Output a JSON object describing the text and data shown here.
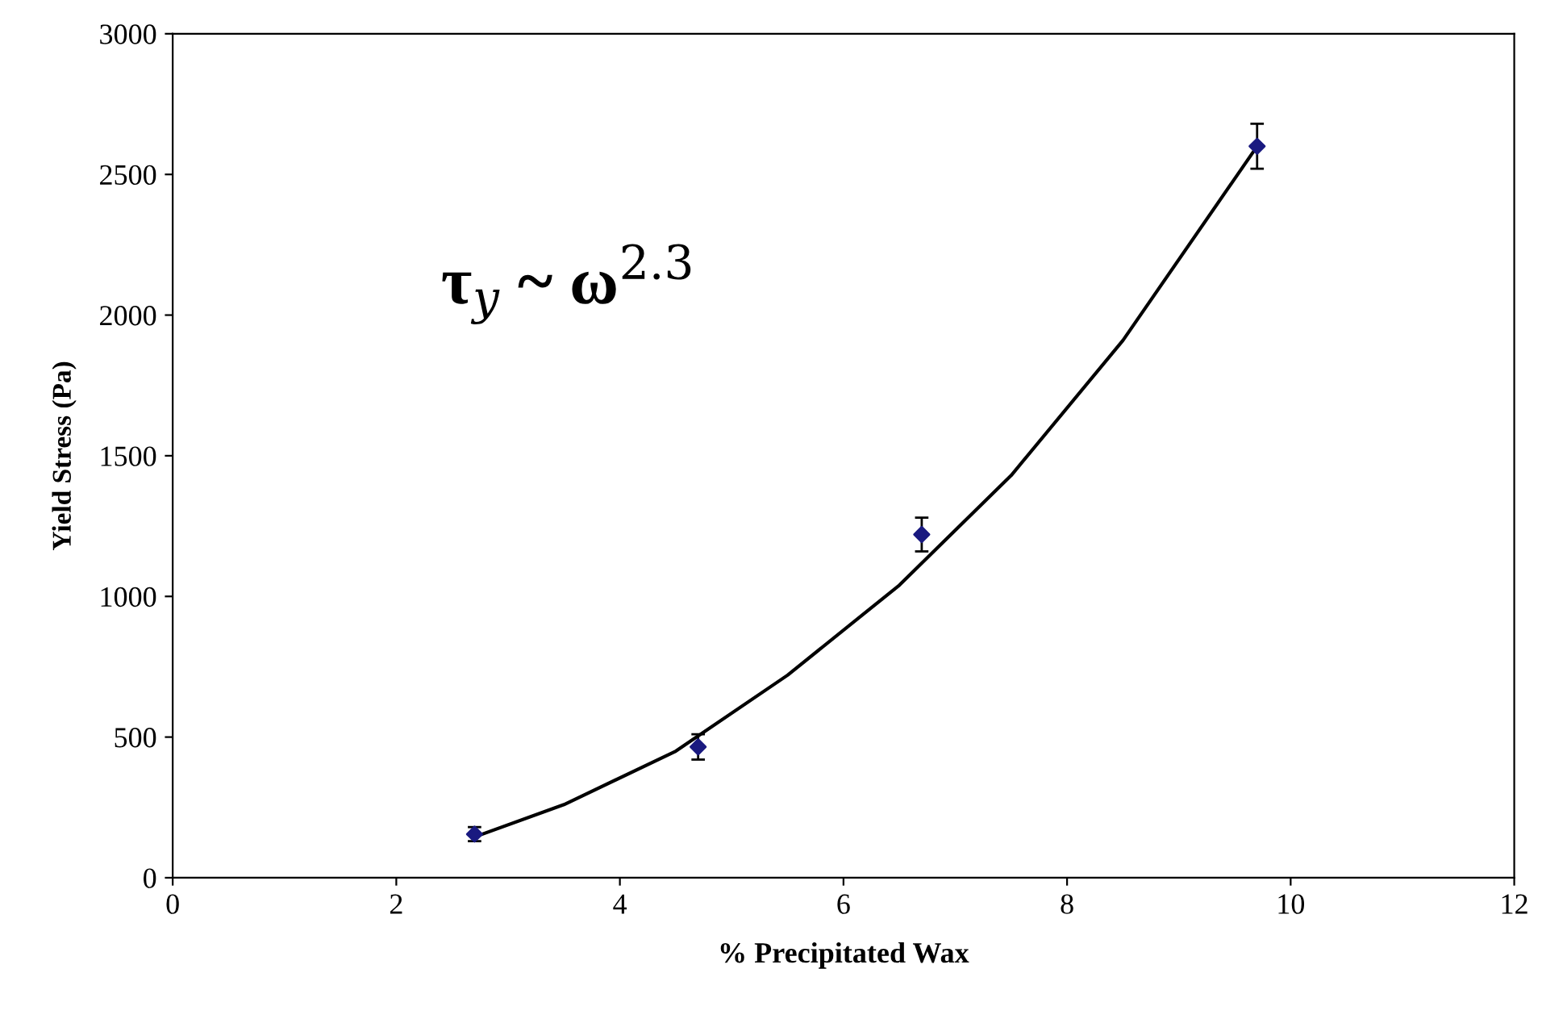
{
  "chart_data": {
    "type": "scatter",
    "xlabel": "% Precipitated Wax",
    "ylabel": "Yield Stress (Pa)",
    "xlim": [
      0,
      12
    ],
    "xticks": [
      0,
      2,
      4,
      6,
      8,
      10,
      12
    ],
    "ylim": [
      0,
      3000
    ],
    "yticks": [
      0,
      500,
      1000,
      1500,
      2000,
      2500,
      3000
    ],
    "annotations": [
      "τ$_{y}$ ~ ω$^{2.3}$"
    ],
    "series": [
      {
        "color": "#1a1a80",
        "marker": "diamond",
        "x": [
          2.7,
          4.7,
          6.7,
          9.7
        ],
        "values": [
          155,
          465,
          1220,
          2600
        ],
        "errors": [
          25,
          45,
          60,
          80
        ]
      },
      {
        "type": "line",
        "color": "#000000",
        "marker": "none",
        "line_style": "solid",
        "x": [
          2.7,
          3.5,
          4.5,
          5.5,
          6.5,
          7.5,
          8.5,
          9.7
        ],
        "values": [
          145,
          260,
          450,
          720,
          1040,
          1430,
          1910,
          2600
        ]
      }
    ]
  }
}
